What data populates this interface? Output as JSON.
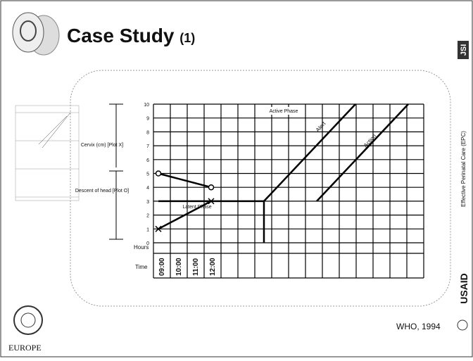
{
  "header": {
    "title": "Case Study",
    "title_suffix": "(1)"
  },
  "partograph": {
    "y_ticks": [
      0,
      1,
      2,
      3,
      4,
      5,
      6,
      7,
      8,
      9,
      10
    ],
    "cervix_label": "Cervix (cm) [Plot X]",
    "descent_label": "Descent of head [Plot O]",
    "hours_label": "Hours",
    "time_label": "Time",
    "times": [
      "09:00",
      "10:00",
      "11:00",
      "12:00"
    ],
    "active_phase": "Active Phase",
    "latent_phase": "Latent Phase",
    "alert": "Alert",
    "action": "Action"
  },
  "footer": {
    "source": "WHO, 1994",
    "region": "EUROPE"
  },
  "sidebar": {
    "org": "JSI",
    "program": "Effective Perinatal Care (EPC)",
    "funder": "USAID"
  }
}
